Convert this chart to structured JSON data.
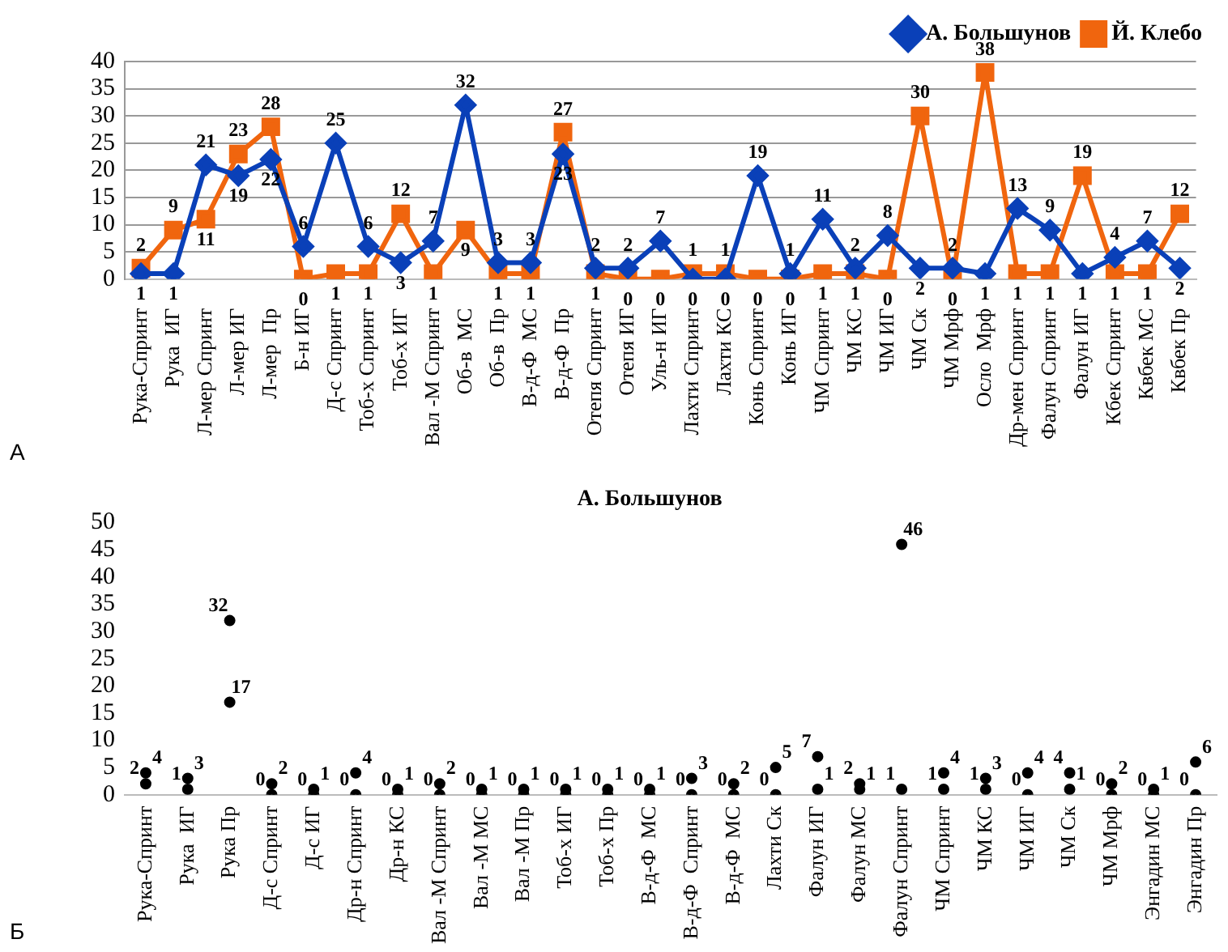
{
  "chart_data": [
    {
      "type": "line",
      "legend": "top right",
      "grid": "y",
      "data_labels": true,
      "annotations": [
        "А"
      ],
      "categories": [
        "Рука-Спринт",
        "Рука  ИГ",
        "Л-мер Спринт",
        "Л-мер ИГ",
        "Л-мер  Пр",
        "Б-н ИГ",
        "Д-с Спринт",
        "Тоб-х Спринт",
        "Тоб-х ИГ",
        "Вал -М Спринт",
        "Об-в  МС",
        "Об-в  Пр",
        "В-д-Ф  МС",
        "В-д-Ф  Пр",
        "Отепя Спринт",
        "Отепя ИГ",
        "Уль-н ИГ",
        "Лахти Спринт",
        "Лахти КС",
        "Конь Спринт",
        "Конь ИГ",
        "ЧМ Спринт",
        "ЧМ КС",
        "ЧМ ИГ",
        "ЧМ Ск",
        "ЧМ Мрф",
        "Осло  Мрф",
        "Др-мен Спринт",
        "Фалун Спринт",
        "Фалун ИГ",
        "Кбек Спринт",
        "Квбек МС",
        "Квбек Пр"
      ],
      "ylim": [
        0,
        40
      ],
      "yticks": [
        0,
        5,
        10,
        15,
        20,
        25,
        30,
        35,
        40
      ],
      "series": [
        {
          "name": "А. Большунов",
          "color": "#0a40b8",
          "marker": "diamond",
          "values": [
            1,
            1,
            21,
            19,
            22,
            6,
            25,
            6,
            3,
            7,
            32,
            3,
            3,
            23,
            2,
            2,
            7,
            0,
            0,
            19,
            1,
            11,
            2,
            8,
            2,
            2,
            1,
            13,
            9,
            1,
            4,
            7,
            2
          ]
        },
        {
          "name": "Й. Клебо",
          "color": "#f0650e",
          "marker": "square",
          "values": [
            2,
            9,
            11,
            23,
            28,
            0,
            1,
            1,
            12,
            1,
            9,
            1,
            1,
            27,
            1,
            0,
            0,
            1,
            1,
            0,
            0,
            1,
            1,
            0,
            30,
            0,
            38,
            1,
            1,
            19,
            1,
            1,
            12
          ]
        }
      ]
    },
    {
      "type": "scatter",
      "title": "А. Большунов",
      "marker": "circle",
      "data_labels": true,
      "grid": false,
      "annotations": [
        "Б"
      ],
      "categories": [
        "Рука-Спринт",
        "Рука  ИГ",
        "Рука Пр",
        "Д-с Спринт",
        "Д-с ИГ",
        "Др-н Спринт",
        "Др-н КС",
        "Вал -М Спринт",
        "Вал -М МС",
        "Вал -М Пр",
        "Тоб-х ИГ",
        "Тоб-х Пр",
        "В-д-Ф  МС",
        "В-д-Ф  Спринт",
        "В-д-Ф  МС",
        "Лахти Ск",
        "Фалун ИГ",
        "Фалун МС",
        "Фалун Спринт",
        "ЧМ Спринт",
        "ЧМ КС",
        "ЧМ ИГ",
        "ЧМ Ск",
        "ЧМ Мрф",
        "Энгадин МС",
        "Энгадин Пр"
      ],
      "ylim": [
        0,
        50
      ],
      "yticks": [
        0,
        5,
        10,
        15,
        20,
        25,
        30,
        35,
        40,
        45,
        50
      ],
      "series": [
        {
          "color": "#000000",
          "values": [
            2,
            1,
            32,
            0,
            0,
            0,
            0,
            0,
            0,
            0,
            0,
            0,
            0,
            0,
            0,
            0,
            7,
            2,
            1,
            1,
            1,
            0,
            4,
            0,
            0,
            0
          ]
        },
        {
          "color": "#000000",
          "values": [
            4,
            3,
            17,
            2,
            1,
            4,
            1,
            2,
            1,
            1,
            1,
            1,
            1,
            3,
            2,
            5,
            1,
            1,
            46,
            4,
            3,
            4,
            1,
            2,
            1,
            6
          ]
        }
      ]
    }
  ]
}
